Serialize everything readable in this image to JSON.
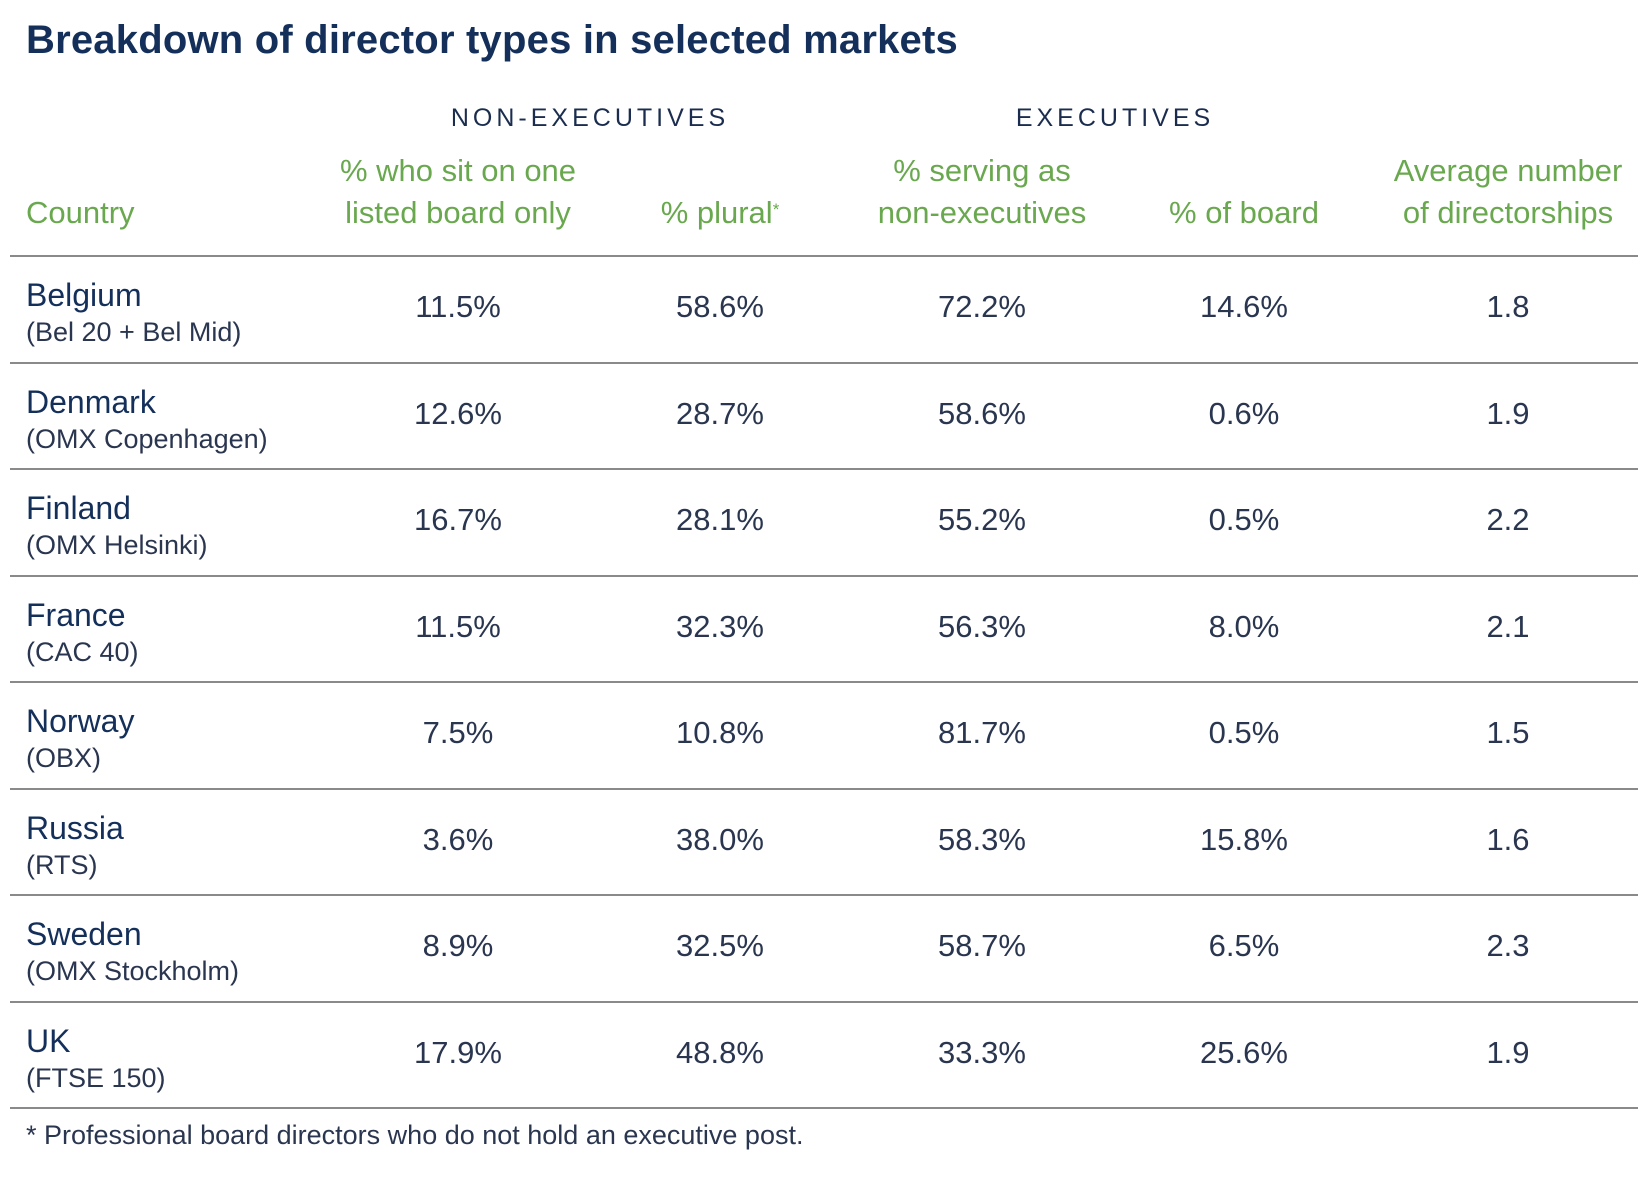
{
  "title": "Breakdown of director types in selected markets",
  "groups": {
    "non_executives": "NON-EXECUTIVES",
    "executives": "EXECUTIVES"
  },
  "headers": {
    "country": "Country",
    "one_board_line1": "% who sit on one",
    "one_board_line2": "listed board only",
    "plural": "% plural",
    "plural_mark": "*",
    "serving_line1": "% serving as",
    "serving_line2": "non-executives",
    "of_board": "% of board",
    "avg_line1": "Average number",
    "avg_line2": "of directorships"
  },
  "chart_data": {
    "type": "table",
    "title": "Breakdown of director types in selected markets",
    "columns": [
      "Country",
      "% who sit on one listed board only",
      "% plural*",
      "% serving as non-executives",
      "% of board",
      "Average number of directorships"
    ],
    "rows": [
      {
        "country": "Belgium",
        "index": "(Bel 20 + Bel Mid)",
        "one_board": "11.5%",
        "plural": "58.6%",
        "serving": "72.2%",
        "of_board": "14.6%",
        "avg": "1.8"
      },
      {
        "country": "Denmark",
        "index": "(OMX Copenhagen)",
        "one_board": "12.6%",
        "plural": "28.7%",
        "serving": "58.6%",
        "of_board": "0.6%",
        "avg": "1.9"
      },
      {
        "country": "Finland",
        "index": "(OMX Helsinki)",
        "one_board": "16.7%",
        "plural": "28.1%",
        "serving": "55.2%",
        "of_board": "0.5%",
        "avg": "2.2"
      },
      {
        "country": "France",
        "index": "(CAC 40)",
        "one_board": "11.5%",
        "plural": "32.3%",
        "serving": "56.3%",
        "of_board": "8.0%",
        "avg": "2.1"
      },
      {
        "country": "Norway",
        "index": "(OBX)",
        "one_board": "7.5%",
        "plural": "10.8%",
        "serving": "81.7%",
        "of_board": "0.5%",
        "avg": "1.5"
      },
      {
        "country": "Russia",
        "index": "(RTS)",
        "one_board": "3.6%",
        "plural": "38.0%",
        "serving": "58.3%",
        "of_board": "15.8%",
        "avg": "1.6"
      },
      {
        "country": "Sweden",
        "index": "(OMX Stockholm)",
        "one_board": "8.9%",
        "plural": "32.5%",
        "serving": "58.7%",
        "of_board": "6.5%",
        "avg": "2.3"
      },
      {
        "country": "UK",
        "index": "(FTSE 150)",
        "one_board": "17.9%",
        "plural": "48.8%",
        "serving": "33.3%",
        "of_board": "25.6%",
        "avg": "1.9"
      }
    ]
  },
  "footnote": "* Professional board directors who do not hold an executive post.",
  "colors": {
    "title": "#14305a",
    "header_green": "#6aa84f",
    "rule": "#8a8a8a"
  }
}
